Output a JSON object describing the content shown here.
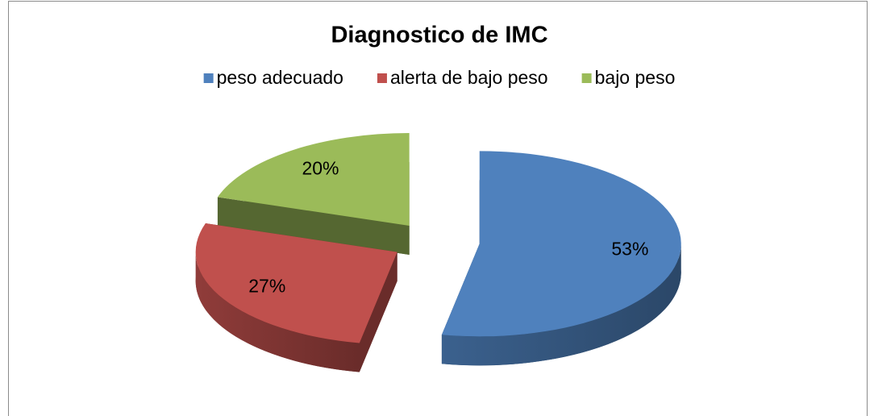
{
  "chart_data": {
    "type": "pie3d",
    "title": "Diagnostico de IMC",
    "categories": [
      "peso adecuado",
      "alerta de bajo peso",
      "bajo peso"
    ],
    "values": [
      53,
      27,
      20
    ],
    "value_labels": [
      "53%",
      "27%",
      "20%"
    ],
    "colors": [
      "#4f81bd",
      "#c0504d",
      "#9bbb59"
    ],
    "legend": "top"
  }
}
